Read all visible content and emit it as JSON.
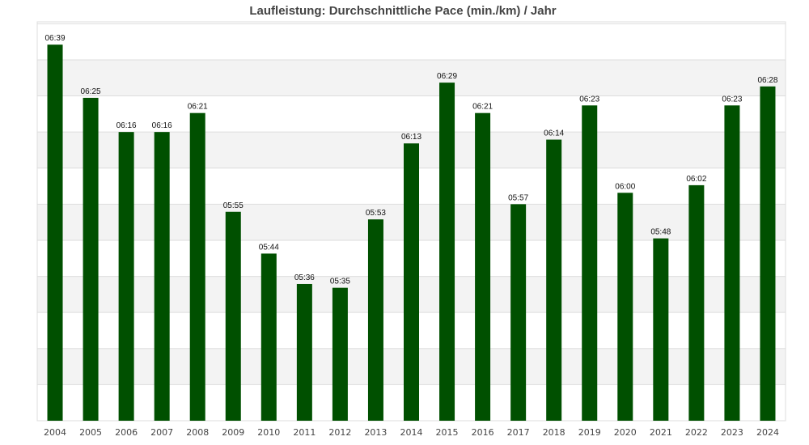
{
  "chart_data": {
    "type": "bar",
    "title": "Laufleistung: Durchschnittliche Pace (min./km) / Jahr",
    "xlabel": "",
    "ylabel": "",
    "categories": [
      "2004",
      "2005",
      "2006",
      "2007",
      "2008",
      "2009",
      "2010",
      "2011",
      "2012",
      "2013",
      "2014",
      "2015",
      "2016",
      "2017",
      "2018",
      "2019",
      "2020",
      "2021",
      "2022",
      "2023",
      "2024"
    ],
    "values_seconds": [
      399,
      385,
      376,
      376,
      381,
      355,
      344,
      336,
      335,
      353,
      373,
      389,
      381,
      357,
      374,
      383,
      360,
      348,
      362,
      383,
      388
    ],
    "value_labels": [
      "06:39",
      "06:25",
      "06:16",
      "06:16",
      "06:21",
      "05:55",
      "05:44",
      "05:36",
      "05:35",
      "05:53",
      "06:13",
      "06:29",
      "06:21",
      "05:57",
      "06:14",
      "06:23",
      "06:00",
      "05:48",
      "06:02",
      "06:23",
      "06:28"
    ],
    "ylim": [
      300,
      405
    ],
    "y_gridlines": [
      300,
      309.5,
      319,
      328.5,
      338,
      347.5,
      357,
      366.5,
      376,
      385.5,
      395,
      404.5
    ],
    "grid": true,
    "alternating_bands": true,
    "colors": {
      "bar": "#005000",
      "band": "#f3f3f3",
      "grid": "#dddddd",
      "title": "#444444"
    }
  }
}
